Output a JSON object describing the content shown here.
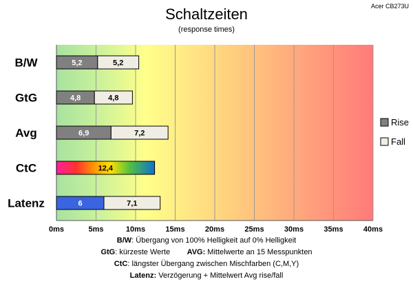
{
  "chart_data": {
    "type": "bar",
    "title": "Schaltzeiten",
    "subtitle": "(response times)",
    "corner_label": "Acer CB273U",
    "categories": [
      "B/W",
      "GtG",
      "Avg",
      "CtC",
      "Latenz"
    ],
    "xlim": [
      0,
      40
    ],
    "xticks": [
      "0ms",
      "5ms",
      "10ms",
      "15ms",
      "20ms",
      "25ms",
      "30ms",
      "35ms",
      "40ms"
    ],
    "grid": true,
    "stacked": true,
    "legend_position": "right",
    "series": [
      {
        "name": "Rise",
        "values": [
          5.2,
          4.8,
          6.9,
          null,
          null
        ],
        "labels": [
          "5,2",
          "4,8",
          "6,9",
          "",
          ""
        ],
        "color": "#808080"
      },
      {
        "name": "Fall",
        "values": [
          5.2,
          4.8,
          7.2,
          null,
          null
        ],
        "labels": [
          "5,2",
          "4,8",
          "7,2",
          "",
          ""
        ],
        "color": "#f0eee4"
      }
    ],
    "extra_bars": [
      {
        "category": "CtC",
        "value": 12.4,
        "label": "12,4",
        "style": "rainbow-gradient"
      },
      {
        "category": "Latenz",
        "segments": [
          {
            "value": 6,
            "label": "6",
            "color": "#3a64e0"
          },
          {
            "value": 7.1,
            "label": "7,1",
            "color": "#f0eee4"
          }
        ]
      }
    ],
    "background_gradient": [
      "#a6e0a0",
      "#ffff88",
      "#ff7878"
    ]
  },
  "footer": {
    "line1_key": "B/W",
    "line1_text": ":  Übergang von 100% Helligkeit auf 0% Helligkeit",
    "line2_key_a": "GtG",
    "line2_text_a": ": kürzeste  Werte",
    "line2_key_b": "AVG:",
    "line2_text_b": " Mittelwerte  an 15 Messpunkten",
    "line3_key": "CtC",
    "line3_text": ": längster Übergang  zwischen Mischfarben  (C,M,Y)",
    "line4_key": "Latenz:",
    "line4_text": " Verzögerung  + Mittelwert Avg rise/fall"
  }
}
